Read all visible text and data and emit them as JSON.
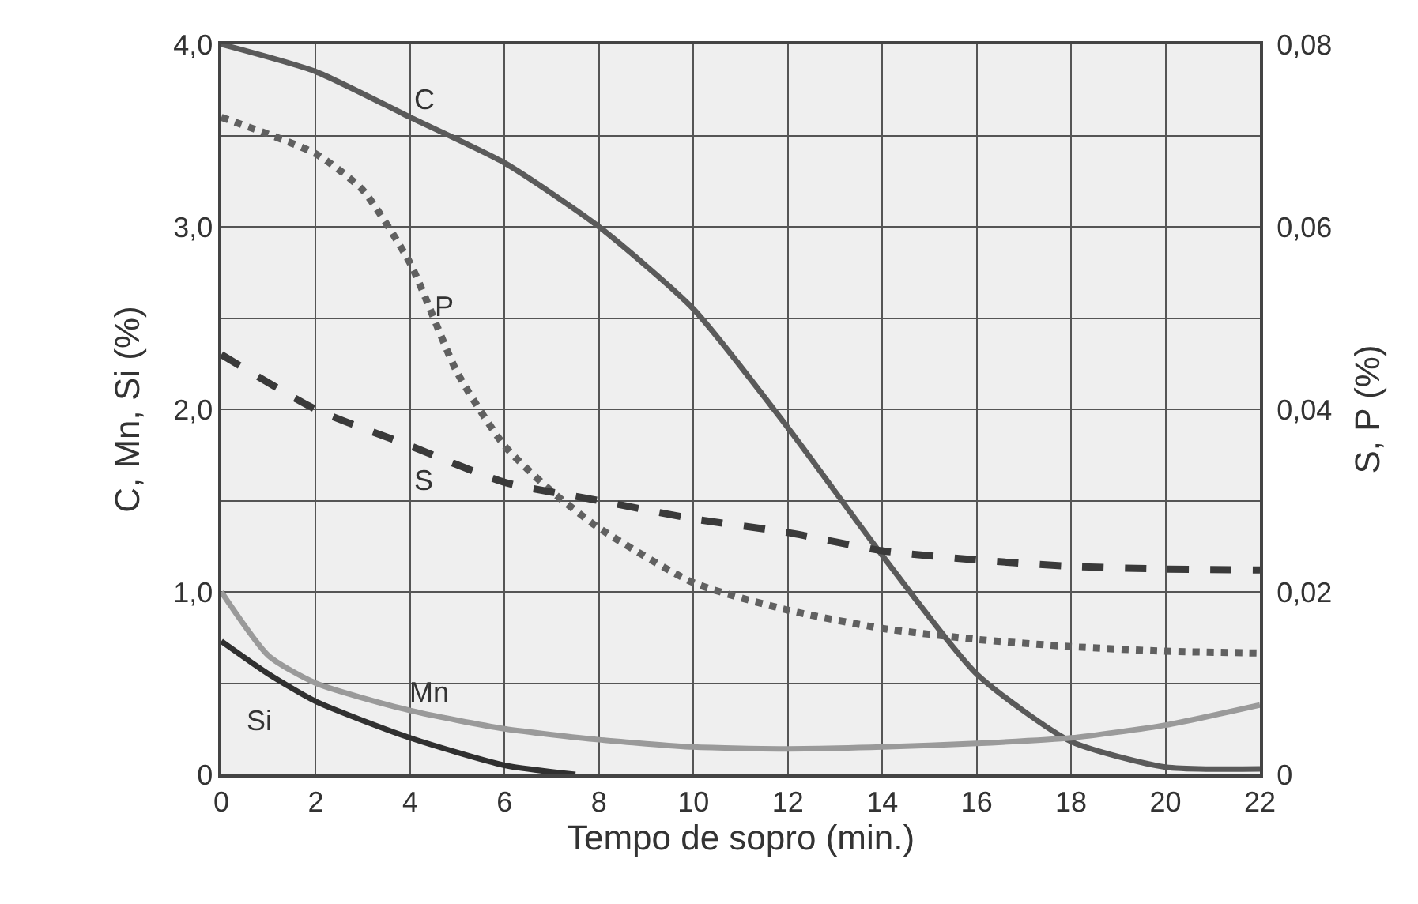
{
  "chart_data": {
    "type": "line",
    "xlabel": "Tempo de sopro (min.)",
    "ylabel": "C, Mn, Si (%)",
    "y2label": "S, P (%)",
    "xlim": [
      0,
      22
    ],
    "xticks": [
      0,
      2,
      4,
      6,
      8,
      10,
      12,
      14,
      16,
      18,
      20,
      22
    ],
    "ylim": [
      0,
      4
    ],
    "yticks": [
      {
        "value": 0,
        "label": "0"
      },
      {
        "value": 0.5,
        "label": null
      },
      {
        "value": 1,
        "label": "1,0"
      },
      {
        "value": 1.5,
        "label": null
      },
      {
        "value": 2,
        "label": "2,0"
      },
      {
        "value": 2.5,
        "label": null
      },
      {
        "value": 3,
        "label": "3,0"
      },
      {
        "value": 3.5,
        "label": null
      },
      {
        "value": 4,
        "label": "4,0"
      }
    ],
    "y2lim": [
      0,
      0.08
    ],
    "y2ticks": [
      {
        "value": 0,
        "label": "0"
      },
      {
        "value": 0.02,
        "label": "0,02"
      },
      {
        "value": 0.04,
        "label": "0,04"
      },
      {
        "value": 0.06,
        "label": "0,06"
      },
      {
        "value": 0.08,
        "label": "0,08"
      }
    ],
    "grid": true,
    "legend": false,
    "marker": "none",
    "series": [
      {
        "name": "C",
        "color": "#5a5a5a",
        "line_style": "solid",
        "x": [
          0,
          2,
          4,
          6,
          8,
          10,
          12,
          14,
          16,
          18,
          20,
          22
        ],
        "values": [
          4.0,
          3.85,
          3.6,
          3.35,
          3.0,
          2.55,
          1.9,
          1.2,
          0.55,
          0.18,
          0.04,
          0.03
        ]
      },
      {
        "name": "P",
        "color": "#606060",
        "line_style": "dotted",
        "axis": "y2",
        "x": [
          0,
          2,
          3,
          4,
          5,
          6,
          7,
          8,
          10,
          12,
          14,
          16,
          18,
          20,
          22
        ],
        "values": [
          0.072,
          0.068,
          0.064,
          0.056,
          0.044,
          0.036,
          0.031,
          0.027,
          0.021,
          0.018,
          0.016,
          0.0148,
          0.014,
          0.0135,
          0.0133
        ]
      },
      {
        "name": "S",
        "color": "#3a3a3a",
        "line_style": "dashed",
        "axis": "y2",
        "x": [
          0,
          2,
          4,
          6,
          8,
          10,
          12,
          14,
          16,
          18,
          20,
          22
        ],
        "values": [
          0.046,
          0.04,
          0.036,
          0.032,
          0.03,
          0.028,
          0.0265,
          0.0245,
          0.0235,
          0.0228,
          0.0225,
          0.0224
        ]
      },
      {
        "name": "Mn",
        "color": "#9a9a9a",
        "line_style": "solid",
        "x": [
          0,
          1,
          2,
          4,
          6,
          8,
          10,
          12,
          14,
          16,
          18,
          20,
          22
        ],
        "values": [
          1.0,
          0.65,
          0.5,
          0.35,
          0.25,
          0.19,
          0.15,
          0.14,
          0.15,
          0.17,
          0.2,
          0.27,
          0.38
        ]
      },
      {
        "name": "Si",
        "color": "#303030",
        "line_style": "solid",
        "x": [
          0,
          1,
          2,
          4,
          6,
          7.5
        ],
        "values": [
          0.73,
          0.55,
          0.4,
          0.2,
          0.05,
          0.0
        ]
      }
    ]
  }
}
